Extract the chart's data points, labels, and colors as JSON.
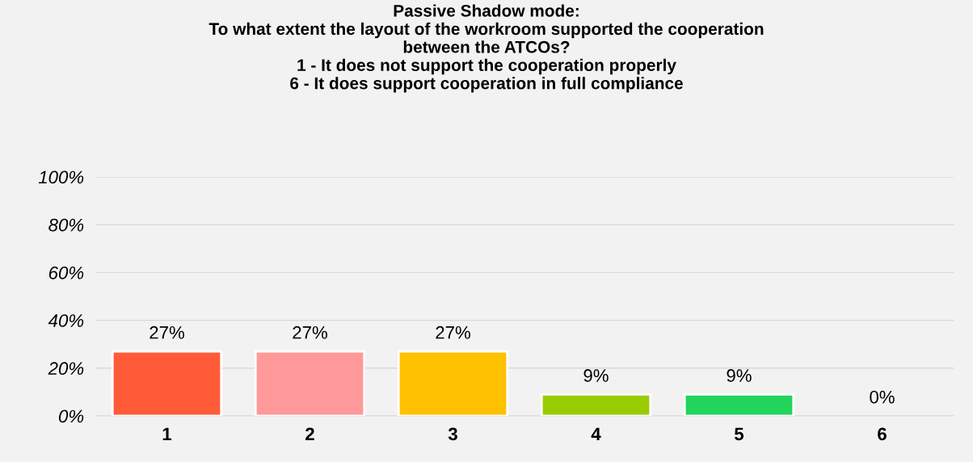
{
  "chart_data": {
    "type": "bar",
    "title": "Passive Shadow mode:\nTo what extent the layout of the workroom supported the cooperation\nbetween the ATCOs?\n1 - It does not support the cooperation properly\n6 - It does support cooperation in full compliance",
    "categories": [
      "1",
      "2",
      "3",
      "4",
      "5",
      "6"
    ],
    "values": [
      27,
      27,
      27,
      9,
      9,
      0
    ],
    "value_labels": [
      "27%",
      "27%",
      "27%",
      "9%",
      "9%",
      "0%"
    ],
    "colors": [
      "#ff5b39",
      "#ff9999",
      "#ffc000",
      "#99cc00",
      "#22d35c",
      null
    ],
    "ylim": [
      0,
      100
    ],
    "yticks": [
      {
        "value": 0,
        "label": "0%"
      },
      {
        "value": 20,
        "label": "20%"
      },
      {
        "value": 40,
        "label": "40%"
      },
      {
        "value": 60,
        "label": "60%"
      },
      {
        "value": 80,
        "label": "80%"
      },
      {
        "value": 100,
        "label": "100%"
      }
    ],
    "grid": "y"
  }
}
